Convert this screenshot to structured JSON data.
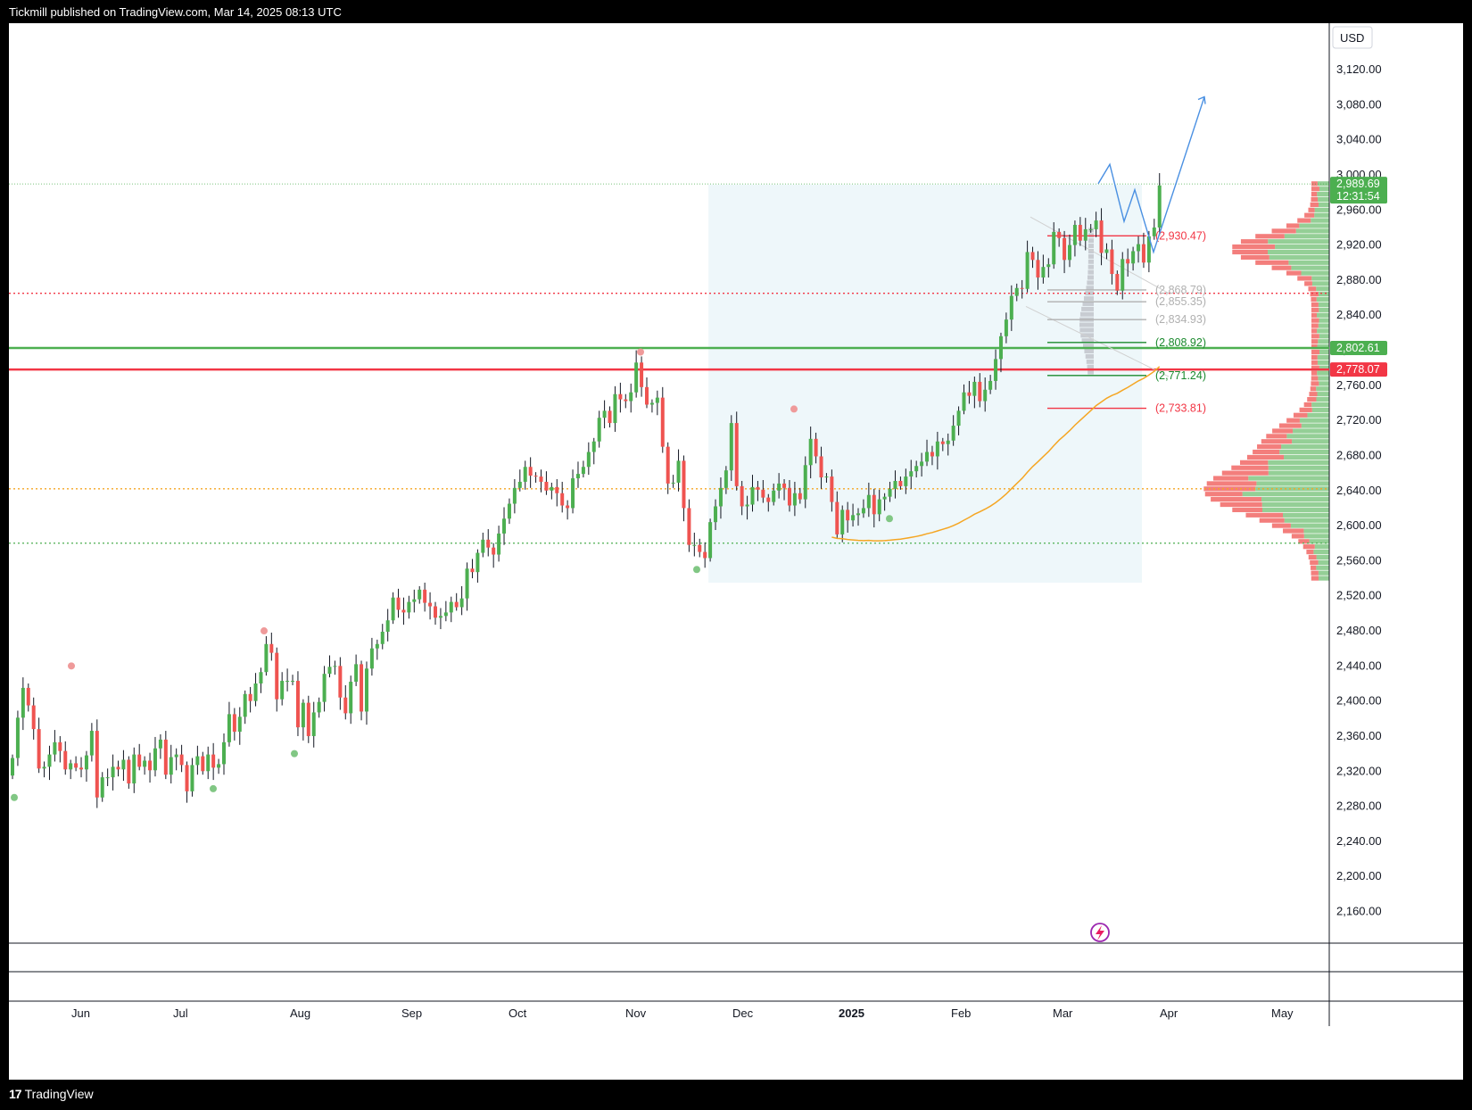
{
  "header": {
    "publisher": "Tickmill published on TradingView.com, Mar 14, 2025 08:13 UTC"
  },
  "footer": {
    "logo_mark": "17",
    "brand": "TradingView"
  },
  "colors": {
    "up": "#4caf50",
    "down": "#ef5350",
    "ema": "#f5a623",
    "projection": "#4a90e2",
    "support": "#4caf50",
    "resistance": "#f23645",
    "range_fill": "#eef7fa"
  },
  "icons": [
    "lightning-icon"
  ],
  "chart_data": {
    "type": "candlestick",
    "currency": "USD",
    "ylim": [
      2120,
      3170
    ],
    "y_ticks": [
      "3,120.00",
      "3,080.00",
      "3,040.00",
      "3,000.00",
      "2,960.00",
      "2,920.00",
      "2,880.00",
      "2,840.00",
      "2,800.00",
      "2,760.00",
      "2,720.00",
      "2,680.00",
      "2,640.00",
      "2,600.00",
      "2,560.00",
      "2,520.00",
      "2,480.00",
      "2,440.00",
      "2,400.00",
      "2,360.00",
      "2,320.00",
      "2,280.00",
      "2,240.00",
      "2,200.00",
      "2,160.00"
    ],
    "x_months": [
      "Jun",
      "Jul",
      "Aug",
      "Sep",
      "Oct",
      "Nov",
      "Dec",
      "2025",
      "Feb",
      "Mar",
      "Apr",
      "May"
    ],
    "current_price": {
      "value": "2,989.69",
      "countdown": "12:31:54"
    },
    "horizontal_levels": [
      {
        "label": "2,802.61",
        "value": 2802.61,
        "color": "#4caf50",
        "style": "solid"
      },
      {
        "label": "2,778.07",
        "value": 2778.07,
        "color": "#f23645",
        "style": "solid"
      },
      {
        "value": 2865,
        "color": "#f23645",
        "style": "dotted"
      },
      {
        "value": 2642,
        "color": "#f5a623",
        "style": "dotted"
      },
      {
        "value": 2580,
        "color": "#4caf50",
        "style": "dotted"
      }
    ],
    "fib_levels": [
      {
        "label": "(2,930.47)",
        "value": 2930.47,
        "color": "#f23645"
      },
      {
        "label": "(2,868.79)",
        "value": 2868.79,
        "color": "#b0b0b0"
      },
      {
        "label": "(2,855.35)",
        "value": 2855.35,
        "color": "#b0b0b0"
      },
      {
        "label": "(2,834.93)",
        "value": 2834.93,
        "color": "#b0b0b0"
      },
      {
        "label": "(2,808.92)",
        "value": 2808.92,
        "color": "#1b8a2e"
      },
      {
        "label": "(2,771.24)",
        "value": 2771.24,
        "color": "#1b8a2e"
      },
      {
        "label": "(2,733.81)",
        "value": 2733.81,
        "color": "#f23645"
      }
    ],
    "range_box": {
      "from_index": 132,
      "to_index": 213,
      "high": 2989,
      "low": 2535
    },
    "projection": [
      2990,
      3012,
      2947,
      2983,
      2912,
      3089
    ],
    "closes": [
      2335,
      2381,
      2415,
      2395,
      2368,
      2323,
      2325,
      2339,
      2353,
      2343,
      2322,
      2329,
      2324,
      2322,
      2338,
      2366,
      2290,
      2313,
      2313,
      2325,
      2322,
      2333,
      2306,
      2339,
      2325,
      2332,
      2321,
      2346,
      2356,
      2316,
      2336,
      2339,
      2327,
      2297,
      2327,
      2337,
      2320,
      2339,
      2324,
      2328,
      2353,
      2385,
      2365,
      2382,
      2408,
      2400,
      2420,
      2433,
      2465,
      2455,
      2402,
      2423,
      2423,
      2423,
      2370,
      2398,
      2360,
      2387,
      2399,
      2431,
      2439,
      2440,
      2404,
      2386,
      2422,
      2442,
      2388,
      2437,
      2460,
      2465,
      2479,
      2492,
      2518,
      2504,
      2501,
      2513,
      2516,
      2527,
      2512,
      2508,
      2495,
      2497,
      2501,
      2513,
      2507,
      2517,
      2551,
      2547,
      2569,
      2584,
      2575,
      2567,
      2591,
      2608,
      2625,
      2643,
      2650,
      2667,
      2657,
      2656,
      2650,
      2640,
      2644,
      2637,
      2623,
      2620,
      2654,
      2659,
      2667,
      2684,
      2696,
      2723,
      2731,
      2717,
      2750,
      2744,
      2742,
      2752,
      2786,
      2758,
      2738,
      2740,
      2746,
      2690,
      2648,
      2649,
      2674,
      2620,
      2578,
      2578,
      2570,
      2563,
      2604,
      2622,
      2643,
      2663,
      2717,
      2645,
      2622,
      2624,
      2644,
      2641,
      2632,
      2627,
      2640,
      2648,
      2643,
      2623,
      2637,
      2630,
      2669,
      2699,
      2679,
      2655,
      2656,
      2627,
      2590,
      2618,
      2606,
      2612,
      2614,
      2620,
      2635,
      2613,
      2630,
      2633,
      2642,
      2651,
      2645,
      2656,
      2662,
      2668,
      2673,
      2684,
      2679,
      2696,
      2693,
      2697,
      2714,
      2731,
      2752,
      2748,
      2764,
      2742,
      2755,
      2765,
      2790,
      2816,
      2835,
      2862,
      2871,
      2870,
      2912,
      2903,
      2883,
      2895,
      2898,
      2935,
      2928,
      2903,
      2920,
      2943,
      2925,
      2938,
      2938,
      2948,
      2911,
      2915,
      2887,
      2868,
      2904,
      2899,
      2913,
      2921,
      2900,
      2930,
      2940,
      2988
    ]
  }
}
